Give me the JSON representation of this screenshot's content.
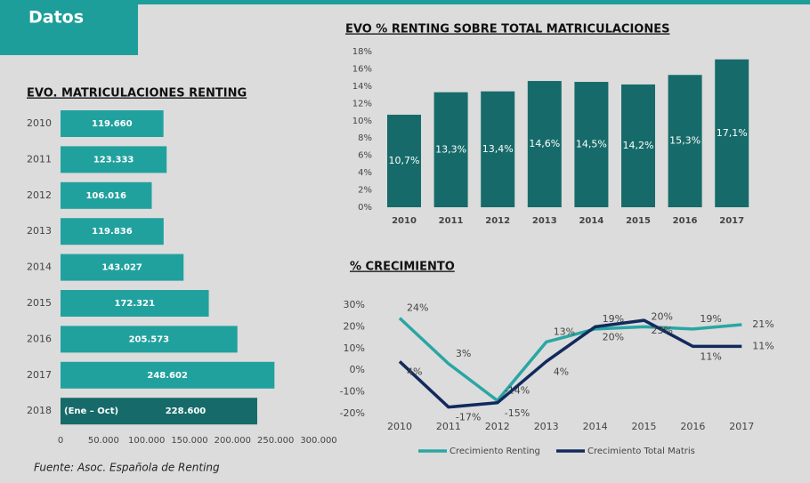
{
  "header": "Datos",
  "source": "Fuente: Asoc. Española de Renting",
  "chart_data": [
    {
      "type": "hbar",
      "title": "EVO. MATRICULACIONES RENTING",
      "categories": [
        "2010",
        "2011",
        "2012",
        "2013",
        "2014",
        "2015",
        "2016",
        "2017",
        "2018"
      ],
      "values": [
        119660,
        123333,
        106016,
        119836,
        143027,
        172321,
        205573,
        248602,
        228600
      ],
      "value_labels": [
        "119.660",
        "123.333",
        "106.016",
        "119.836",
        "143.027",
        "172.321",
        "205.573",
        "248.602",
        "228.600"
      ],
      "colors": [
        "#21a19e",
        "#21a19e",
        "#21a19e",
        "#21a19e",
        "#21a19e",
        "#21a19e",
        "#21a19e",
        "#21a19e",
        "#166b6a"
      ],
      "annotation": "(Ene – Oct)",
      "xlim": [
        0,
        300000
      ],
      "xticks": [
        0,
        {
          "value": 50000,
          "label": "50.000"
        },
        {
          "value": 100000,
          "label": "100.000"
        },
        {
          "value": 150000,
          "label": "150.000"
        },
        {
          "value": 200000,
          "label": "200.000"
        },
        {
          "value": 250000,
          "label": "250.000"
        },
        {
          "value": 300000,
          "label": "300.000"
        }
      ],
      "grid": false
    },
    {
      "type": "bar",
      "title": "EVO % RENTING SOBRE TOTAL MATRICULACIONES",
      "categories": [
        "2010",
        "2011",
        "2012",
        "2013",
        "2014",
        "2015",
        "2016",
        "2017"
      ],
      "values": [
        10.7,
        13.3,
        13.4,
        14.6,
        14.5,
        14.2,
        15.3,
        17.1
      ],
      "value_labels": [
        "10,7%",
        "13,3%",
        "13,4%",
        "14,6%",
        "14,5%",
        "14,2%",
        "15,3%",
        "17,1%"
      ],
      "color": "#166b6a",
      "ylim": [
        0,
        18
      ],
      "yticks": [
        {
          "value": 0,
          "label": "0%"
        },
        {
          "value": 2,
          "label": "2%"
        },
        {
          "value": 4,
          "label": "4%"
        },
        {
          "value": 6,
          "label": "6%"
        },
        {
          "value": 8,
          "label": "8%"
        },
        {
          "value": 10,
          "label": "10%"
        },
        {
          "value": 12,
          "label": "12%"
        },
        {
          "value": 14,
          "label": "14%"
        },
        {
          "value": 16,
          "label": "16%"
        },
        {
          "value": 18,
          "label": "18%"
        }
      ],
      "grid": false
    },
    {
      "type": "line",
      "title": "% CRECIMIENTO",
      "categories": [
        "2010",
        "2011",
        "2012",
        "2013",
        "2014",
        "2015",
        "2016",
        "2017"
      ],
      "series": [
        {
          "name": "Crecimiento Renting",
          "color": "#2aa6a4",
          "values": [
            24,
            3,
            -14,
            13,
            19,
            20,
            19,
            21
          ],
          "value_labels": [
            "24%",
            "3%",
            "-14%",
            "13%",
            "19%",
            "20%",
            "19%",
            "21%"
          ]
        },
        {
          "name": "Crecimiento Total Matris",
          "color": "#112a5e",
          "values": [
            4,
            -17,
            -15,
            4,
            20,
            23,
            11,
            11
          ],
          "value_labels": [
            "4%",
            "-17%",
            "-15%",
            "4%",
            "20%",
            "23%",
            "11%",
            "11%"
          ]
        }
      ],
      "ylim": [
        -20,
        30
      ],
      "yticks": [
        {
          "value": -20,
          "label": "-20%"
        },
        {
          "value": -10,
          "label": "-10%"
        },
        {
          "value": 0,
          "label": "0%"
        },
        {
          "value": 10,
          "label": "10%"
        },
        {
          "value": 20,
          "label": "20%"
        },
        {
          "value": 30,
          "label": "30%"
        }
      ],
      "legend": "bottom",
      "grid": false
    }
  ]
}
